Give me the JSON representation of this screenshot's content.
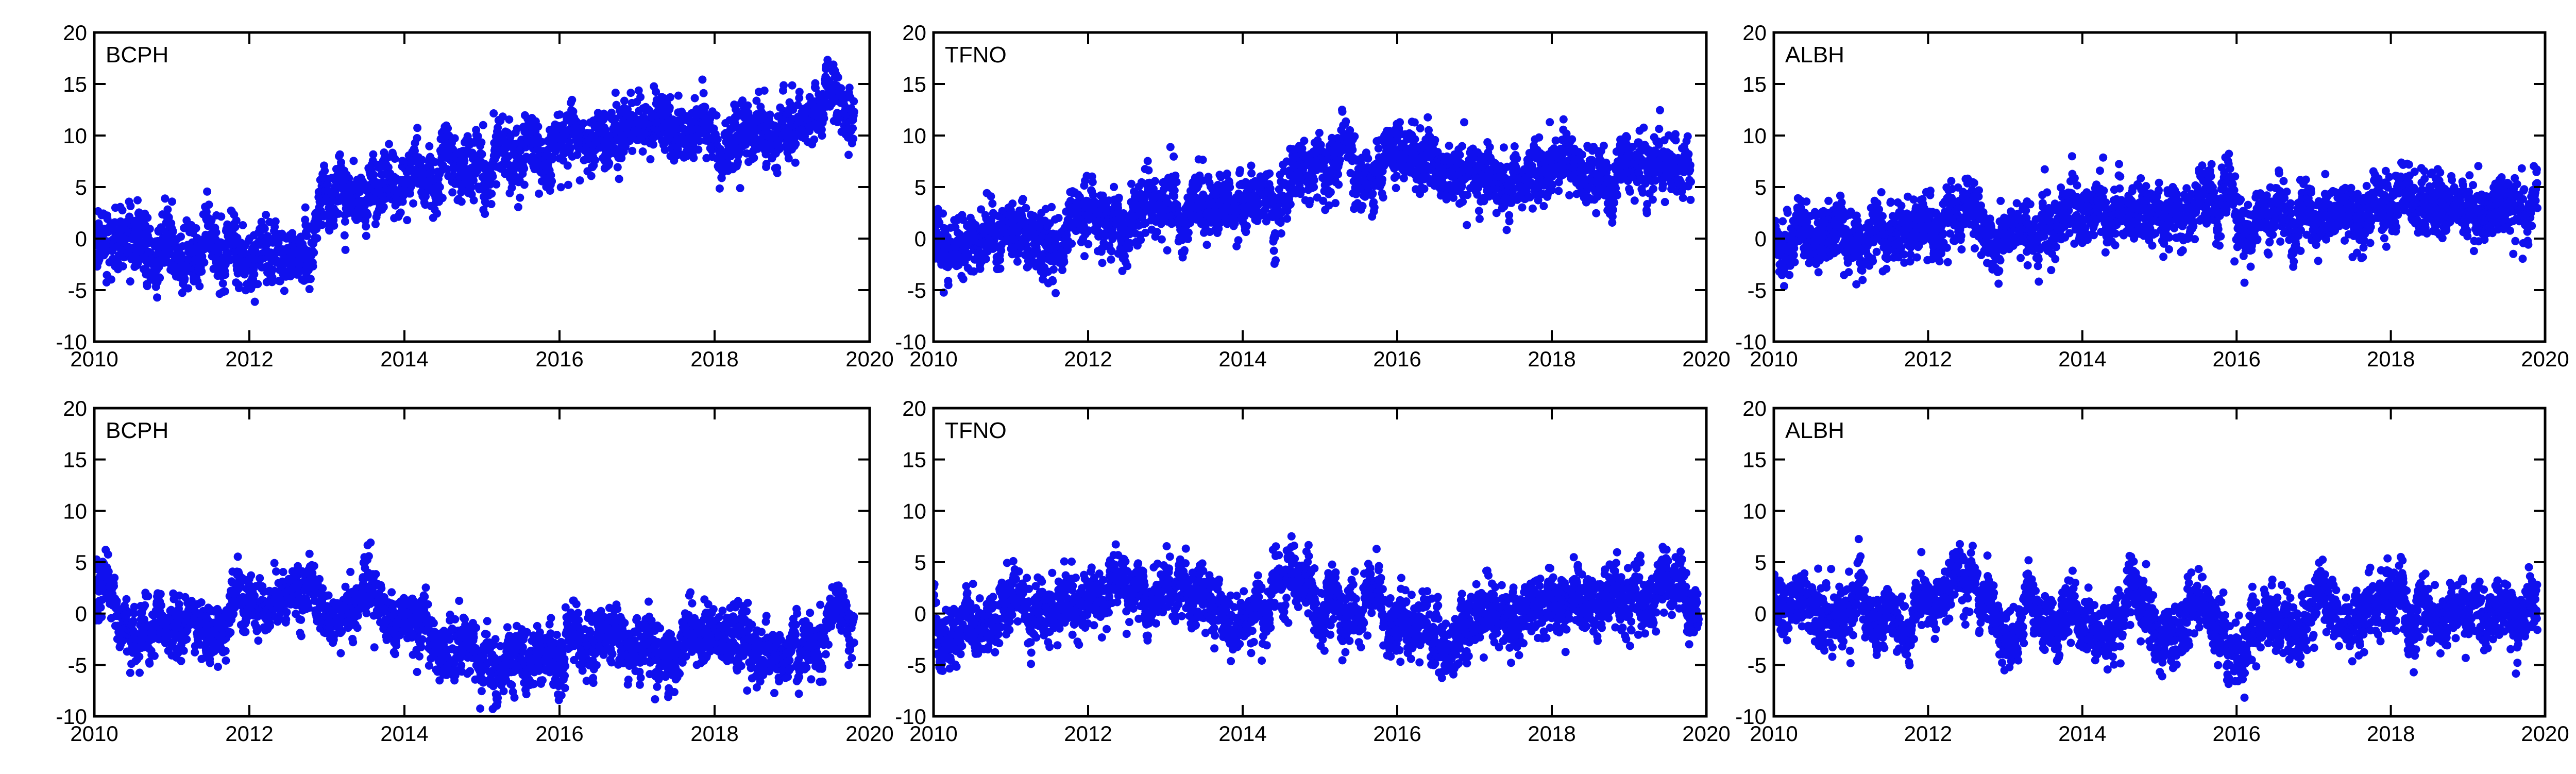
{
  "chart_data": [
    {
      "type": "scatter",
      "title": "BCPH",
      "xlim": [
        2010,
        2020
      ],
      "ylim": [
        -10,
        20
      ],
      "xticks": [
        2010,
        2012,
        2014,
        2016,
        2018,
        2020
      ],
      "yticks": [
        -10,
        -5,
        0,
        5,
        10,
        15,
        20
      ],
      "color": "#1010ee",
      "series": [
        {
          "x": [
            2010.0,
            2010.5,
            2011.0,
            2011.5,
            2012.0,
            2012.5,
            2012.8,
            2012.9,
            2013.5,
            2014.0,
            2014.5,
            2015.0,
            2015.5,
            2016.0,
            2016.5,
            2017.0,
            2017.5,
            2018.0,
            2018.5,
            2019.0,
            2019.5,
            2019.8
          ],
          "y": [
            0.0,
            -1.0,
            -0.5,
            -1.0,
            -2.0,
            -1.5,
            -1.0,
            4.0,
            5.0,
            5.5,
            7.0,
            7.5,
            8.5,
            10.0,
            10.0,
            10.5,
            10.0,
            10.0,
            10.5,
            11.5,
            12.0,
            12.0
          ],
          "spread": [
            1.6,
            1.6,
            1.6,
            1.7,
            1.7,
            1.6,
            1.6,
            1.5,
            1.5,
            1.5,
            1.6,
            1.6,
            1.6,
            1.5,
            1.5,
            1.5,
            1.5,
            1.5,
            1.5,
            1.5,
            1.5,
            1.5
          ]
        }
      ]
    },
    {
      "type": "scatter",
      "title": "TFNO",
      "xlim": [
        2010,
        2020
      ],
      "ylim": [
        -10,
        20
      ],
      "xticks": [
        2010,
        2012,
        2014,
        2016,
        2018,
        2020
      ],
      "yticks": [
        -10,
        -5,
        0,
        5,
        10,
        15,
        20
      ],
      "color": "#1010ee",
      "series": [
        {
          "x": [
            2010.0,
            2010.5,
            2011.0,
            2011.5,
            2012.0,
            2012.5,
            2013.0,
            2013.5,
            2014.0,
            2014.5,
            2015.0,
            2015.5,
            2016.0,
            2016.5,
            2017.0,
            2017.5,
            2018.0,
            2018.5,
            2019.0,
            2019.5,
            2019.8
          ],
          "y": [
            -0.5,
            -0.5,
            0.0,
            -0.5,
            0.0,
            1.0,
            2.5,
            3.5,
            4.0,
            5.0,
            6.0,
            6.5,
            7.5,
            6.5,
            6.5,
            6.0,
            6.0,
            6.0,
            6.5,
            7.0,
            7.0
          ],
          "spread": [
            1.5,
            1.5,
            1.5,
            1.5,
            1.5,
            1.5,
            1.5,
            1.5,
            1.5,
            1.5,
            1.5,
            1.5,
            1.5,
            1.5,
            1.5,
            1.5,
            1.5,
            1.5,
            1.5,
            1.5,
            1.5
          ]
        }
      ]
    },
    {
      "type": "scatter",
      "title": "ALBH",
      "xlim": [
        2010,
        2020
      ],
      "ylim": [
        -10,
        20
      ],
      "xticks": [
        2010,
        2012,
        2014,
        2016,
        2018,
        2020
      ],
      "yticks": [
        -10,
        -5,
        0,
        5,
        10,
        15,
        20
      ],
      "color": "#1010ee",
      "series": [
        {
          "x": [
            2010.0,
            2010.5,
            2011.0,
            2011.5,
            2012.0,
            2012.5,
            2013.0,
            2013.5,
            2014.0,
            2014.5,
            2015.0,
            2015.5,
            2015.9,
            2016.1,
            2016.5,
            2017.0,
            2017.5,
            2018.0,
            2018.5,
            2019.0,
            2019.5,
            2019.9
          ],
          "y": [
            0.5,
            0.0,
            0.5,
            0.0,
            0.0,
            0.5,
            1.0,
            1.5,
            1.5,
            2.5,
            3.0,
            3.0,
            5.0,
            1.0,
            2.5,
            3.0,
            3.0,
            3.0,
            3.0,
            3.0,
            3.5,
            3.5
          ],
          "spread": [
            1.5,
            1.5,
            1.5,
            1.5,
            1.5,
            1.5,
            1.5,
            1.5,
            1.5,
            1.5,
            1.5,
            1.5,
            1.6,
            1.5,
            1.5,
            1.5,
            1.5,
            1.5,
            1.5,
            1.5,
            1.5,
            1.5
          ]
        }
      ]
    },
    {
      "type": "scatter",
      "title": "BCPH",
      "xlim": [
        2010,
        2020
      ],
      "ylim": [
        -10,
        20
      ],
      "xticks": [
        2010,
        2012,
        2014,
        2016,
        2018,
        2020
      ],
      "yticks": [
        -10,
        -5,
        0,
        5,
        10,
        15,
        20
      ],
      "color": "#1010ee",
      "series": [
        {
          "x": [
            2010.0,
            2010.3,
            2010.6,
            2011.0,
            2011.5,
            2012.0,
            2012.5,
            2013.0,
            2013.5,
            2014.0,
            2014.5,
            2015.0,
            2015.5,
            2016.0,
            2016.5,
            2017.0,
            2017.5,
            2018.0,
            2018.5,
            2019.0,
            2019.5,
            2019.8
          ],
          "y": [
            2.0,
            -1.0,
            -1.5,
            -1.0,
            -1.0,
            0.0,
            0.5,
            0.0,
            -0.5,
            -1.0,
            -2.5,
            -4.0,
            -3.5,
            -3.0,
            -2.5,
            -2.5,
            -3.0,
            -3.0,
            -2.5,
            -2.5,
            -2.5,
            -2.5
          ],
          "spread": [
            1.8,
            1.4,
            1.4,
            1.4,
            1.4,
            1.4,
            1.4,
            1.4,
            1.4,
            1.4,
            1.5,
            1.6,
            1.5,
            1.5,
            1.5,
            1.5,
            1.5,
            1.5,
            1.5,
            1.5,
            1.5,
            1.5
          ]
        }
      ]
    },
    {
      "type": "scatter",
      "title": "TFNO",
      "xlim": [
        2010,
        2020
      ],
      "ylim": [
        -10,
        20
      ],
      "xticks": [
        2010,
        2012,
        2014,
        2016,
        2018,
        2020
      ],
      "yticks": [
        -10,
        -5,
        0,
        5,
        10,
        15,
        20
      ],
      "color": "#1010ee",
      "series": [
        {
          "x": [
            2010.0,
            2010.2,
            2010.5,
            2011.0,
            2011.5,
            2012.0,
            2012.5,
            2013.0,
            2013.5,
            2014.0,
            2014.5,
            2015.0,
            2015.5,
            2016.0,
            2016.5,
            2017.0,
            2017.5,
            2018.0,
            2018.5,
            2019.0,
            2019.5,
            2019.9
          ],
          "y": [
            1.0,
            -3.0,
            -1.5,
            -0.5,
            0.5,
            0.5,
            1.0,
            1.5,
            1.5,
            1.0,
            1.5,
            0.5,
            0.0,
            0.0,
            -0.5,
            0.0,
            0.5,
            1.0,
            1.0,
            2.0,
            1.0,
            1.0
          ],
          "spread": [
            2.0,
            1.5,
            1.5,
            1.5,
            1.6,
            1.5,
            1.5,
            1.5,
            1.6,
            1.5,
            1.6,
            1.5,
            1.5,
            1.5,
            1.5,
            1.5,
            1.5,
            1.5,
            1.5,
            1.7,
            1.5,
            1.5
          ]
        }
      ]
    },
    {
      "type": "scatter",
      "title": "ALBH",
      "xlim": [
        2010,
        2020
      ],
      "ylim": [
        -10,
        20
      ],
      "xticks": [
        2010,
        2012,
        2014,
        2016,
        2018,
        2020
      ],
      "yticks": [
        -10,
        -5,
        0,
        5,
        10,
        15,
        20
      ],
      "color": "#1010ee",
      "series": [
        {
          "x": [
            2010.0,
            2010.5,
            2011.0,
            2011.5,
            2012.0,
            2012.5,
            2013.0,
            2013.5,
            2014.0,
            2014.5,
            2014.8,
            2015.0,
            2015.5,
            2016.0,
            2016.2,
            2016.5,
            2017.0,
            2017.5,
            2018.0,
            2018.5,
            2019.0,
            2019.5,
            2019.9
          ],
          "y": [
            1.0,
            -1.5,
            0.5,
            -1.0,
            0.5,
            1.5,
            -1.0,
            0.0,
            -1.0,
            0.5,
            2.0,
            -1.5,
            1.0,
            -3.0,
            -1.5,
            -0.5,
            0.5,
            -1.0,
            0.0,
            0.5,
            0.0,
            1.5,
            0.5
          ],
          "spread": [
            1.6,
            1.5,
            1.5,
            1.5,
            1.5,
            1.5,
            1.5,
            1.5,
            1.5,
            1.5,
            1.6,
            1.5,
            1.5,
            1.6,
            1.5,
            1.5,
            1.5,
            1.5,
            1.5,
            1.5,
            1.5,
            1.6,
            1.5
          ]
        }
      ]
    }
  ]
}
